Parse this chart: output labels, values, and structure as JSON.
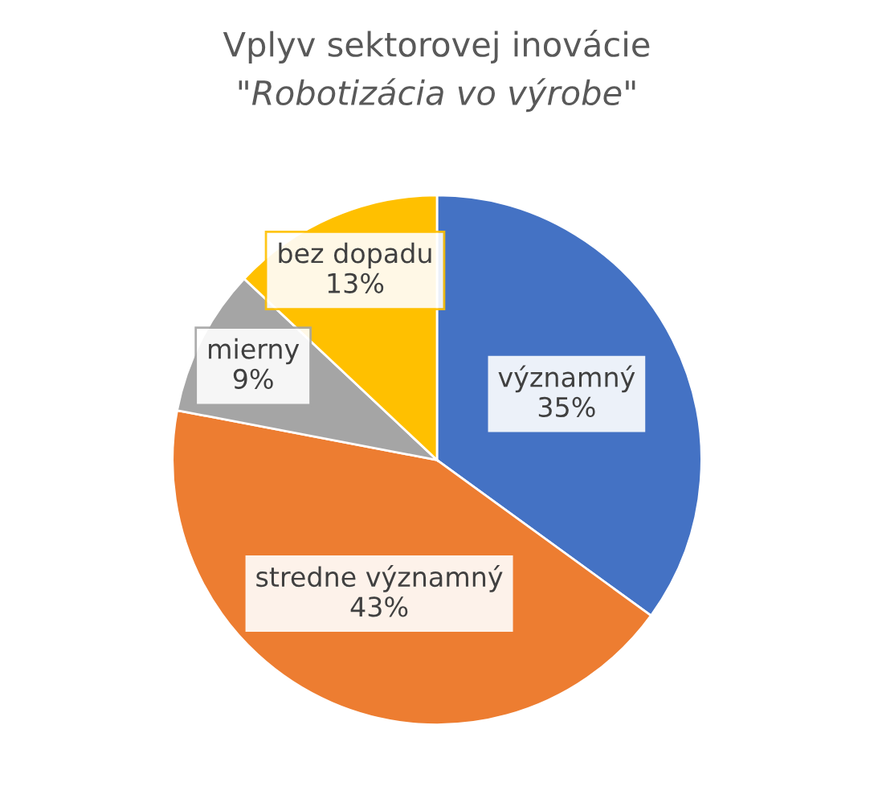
{
  "chart_data": {
    "type": "pie",
    "title": "Vplyv sektorovej inovácie",
    "subtitle": "\"Robotizácia vo výrobe\"",
    "categories": [
      "významný",
      "stredne významný",
      "mierny",
      "bez dopadu"
    ],
    "values": [
      35,
      43,
      9,
      13
    ],
    "value_labels": [
      "35%",
      "43%",
      "9%",
      "13%"
    ],
    "colors": [
      "#4472c4",
      "#ed7d31",
      "#a5a5a5",
      "#ffc000"
    ]
  }
}
